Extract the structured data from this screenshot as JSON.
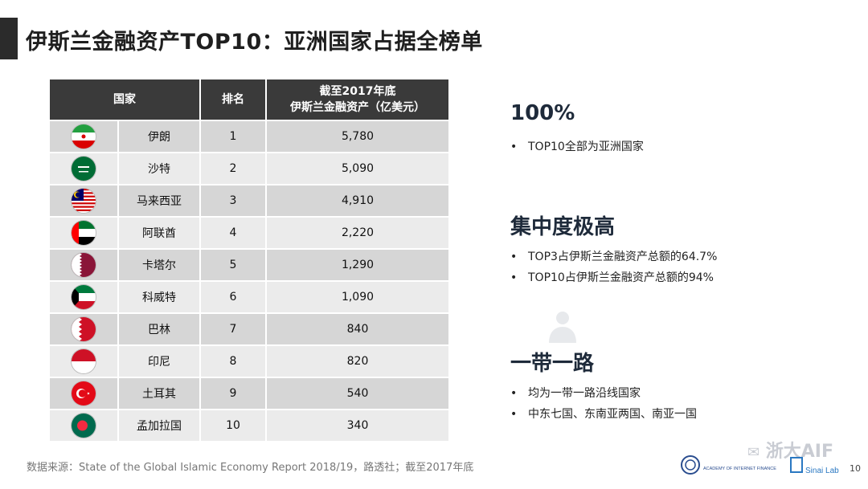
{
  "title": "伊斯兰金融资产TOP10：亚洲国家占据全榜单",
  "table": {
    "headers": {
      "country": "国家",
      "rank": "排名",
      "value_line1": "截至2017年底",
      "value_line2": "伊斯兰金融资产（亿美元）"
    },
    "rows": [
      {
        "flag": "iran-flag-icon",
        "name": "伊朗",
        "rank": "1",
        "value": "5,780"
      },
      {
        "flag": "saudi-flag-icon",
        "name": "沙特",
        "rank": "2",
        "value": "5,090"
      },
      {
        "flag": "malaysia-flag-icon",
        "name": "马来西亚",
        "rank": "3",
        "value": "4,910"
      },
      {
        "flag": "uae-flag-icon",
        "name": "阿联酋",
        "rank": "4",
        "value": "2,220"
      },
      {
        "flag": "qatar-flag-icon",
        "name": "卡塔尔",
        "rank": "5",
        "value": "1,290"
      },
      {
        "flag": "kuwait-flag-icon",
        "name": "科威特",
        "rank": "6",
        "value": "1,090"
      },
      {
        "flag": "bahrain-flag-icon",
        "name": "巴林",
        "rank": "7",
        "value": "840"
      },
      {
        "flag": "indonesia-flag-icon",
        "name": "印尼",
        "rank": "8",
        "value": "820"
      },
      {
        "flag": "turkey-flag-icon",
        "name": "土耳其",
        "rank": "9",
        "value": "540"
      },
      {
        "flag": "bangladesh-flag-icon",
        "name": "孟加拉国",
        "rank": "10",
        "value": "340"
      }
    ]
  },
  "side": {
    "s1": {
      "head": "100%",
      "bullets": [
        "TOP10全部为亚洲国家"
      ]
    },
    "s2": {
      "head": "集中度极高",
      "bullets": [
        "TOP3占伊斯兰金融资产总额的64.7%",
        "TOP10占伊斯兰金融资产总额的94%"
      ]
    },
    "s3": {
      "head": "一带一路",
      "bullets": [
        "均为一带一路沿线国家",
        "中东七国、东南亚两国、南亚一国"
      ]
    }
  },
  "bullet_symbol": "•",
  "source": "数据来源：State of the Global Islamic Economy Report 2018/19，路透社；截至2017年底",
  "watermark": "浙大AIF",
  "footer_logos": {
    "left": "ACADEMY OF INTERNET FINANCE",
    "right": "Sinai Lab"
  },
  "page_number": "10",
  "colors": {
    "header_bg": "#3a3a3a",
    "row_dark": "#d6d6d6",
    "row_light": "#ebebeb",
    "title_bar": "#2b2b2b"
  }
}
